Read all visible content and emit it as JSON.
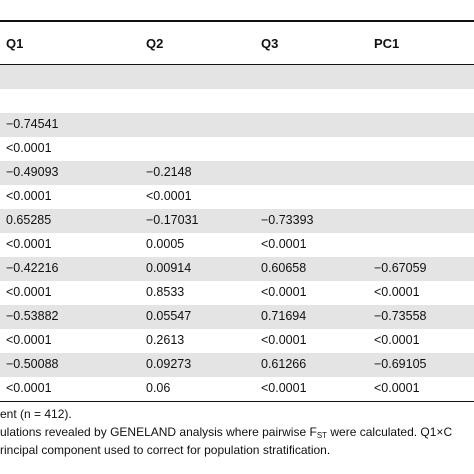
{
  "table": {
    "columns": [
      "Q1",
      "Q2",
      "Q3",
      "PC1"
    ],
    "rows": [
      [
        "",
        "",
        "",
        ""
      ],
      [
        "",
        "",
        "",
        ""
      ],
      [
        "−0.74541",
        "",
        "",
        ""
      ],
      [
        "<0.0001",
        "",
        "",
        ""
      ],
      [
        "−0.49093",
        "−0.2148",
        "",
        ""
      ],
      [
        "<0.0001",
        "<0.0001",
        "",
        ""
      ],
      [
        "0.65285",
        "−0.17031",
        "−0.73393",
        ""
      ],
      [
        "<0.0001",
        "0.0005",
        "<0.0001",
        ""
      ],
      [
        "−0.42216",
        "0.00914",
        "0.60658",
        "−0.67059"
      ],
      [
        "<0.0001",
        "0.8533",
        "<0.0001",
        "<0.0001"
      ],
      [
        "−0.53882",
        "0.05547",
        "0.71694",
        "−0.73558"
      ],
      [
        "<0.0001",
        "0.2613",
        "<0.0001",
        "<0.0001"
      ],
      [
        "−0.50088",
        "0.09273",
        "0.61266",
        "−0.69105"
      ],
      [
        "<0.0001",
        "0.06",
        "<0.0001",
        "<0.0001"
      ]
    ]
  },
  "footnotes": {
    "line1": "ent (n = 412).",
    "line2_pre": "ulations revealed by GENELAND analysis where pairwise F",
    "line2_sub": "ST",
    "line2_post": " were calculated. Q1×C",
    "line3": "rincipal component used to correct for population stratification."
  }
}
